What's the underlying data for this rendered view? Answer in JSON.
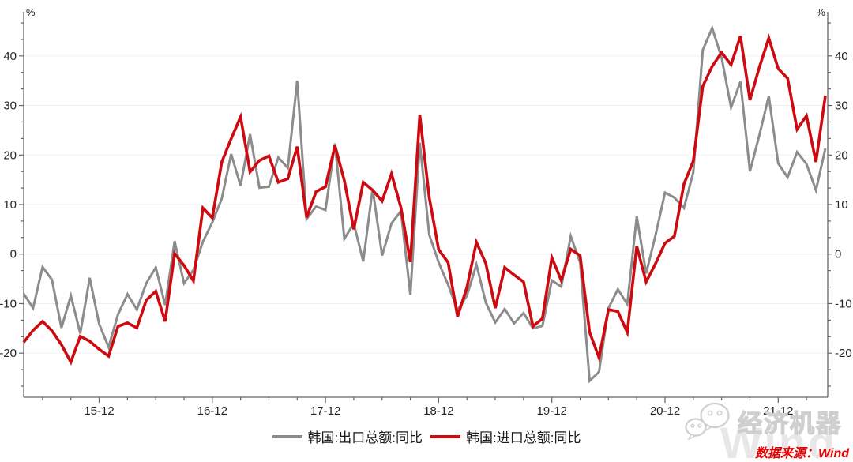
{
  "chart_data": {
    "type": "line",
    "title": "",
    "x": [
      "15-04",
      "15-05",
      "15-06",
      "15-07",
      "15-08",
      "15-09",
      "15-10",
      "15-11",
      "15-12",
      "16-01",
      "16-02",
      "16-03",
      "16-04",
      "16-05",
      "16-06",
      "16-07",
      "16-08",
      "16-09",
      "16-10",
      "16-11",
      "16-12",
      "17-01",
      "17-02",
      "17-03",
      "17-04",
      "17-05",
      "17-06",
      "17-07",
      "17-08",
      "17-09",
      "17-10",
      "17-11",
      "17-12",
      "18-01",
      "18-02",
      "18-03",
      "18-04",
      "18-05",
      "18-06",
      "18-07",
      "18-08",
      "18-09",
      "18-10",
      "18-11",
      "18-12",
      "19-01",
      "19-02",
      "19-03",
      "19-04",
      "19-05",
      "19-06",
      "19-07",
      "19-08",
      "19-09",
      "19-10",
      "19-11",
      "19-12",
      "20-01",
      "20-02",
      "20-03",
      "20-04",
      "20-05",
      "20-06",
      "20-07",
      "20-08",
      "20-09",
      "20-10",
      "20-11",
      "20-12",
      "21-01",
      "21-02",
      "21-03",
      "21-04",
      "21-05",
      "21-06",
      "21-07",
      "21-08",
      "21-09",
      "21-10",
      "21-11",
      "21-12",
      "22-01",
      "22-02",
      "22-03",
      "22-04",
      "22-05"
    ],
    "x_tick_labels": [
      "15-12",
      "16-12",
      "17-12",
      "18-12",
      "19-12",
      "20-12",
      "21-12"
    ],
    "series": [
      {
        "name": "韩国:出口总额:同比",
        "color": "#8C8C8C",
        "values": [
          -8.0,
          -10.9,
          -2.6,
          -5.2,
          -14.9,
          -8.4,
          -16.0,
          -4.8,
          -14.1,
          -18.8,
          -12.2,
          -8.1,
          -11.2,
          -5.9,
          -2.7,
          -10.3,
          2.6,
          -5.9,
          -3.2,
          2.5,
          6.4,
          11.2,
          20.2,
          13.8,
          24.2,
          13.4,
          13.6,
          19.5,
          17.4,
          35.0,
          7.1,
          9.6,
          8.9,
          22.3,
          3.1,
          6.2,
          -1.5,
          13.2,
          -0.3,
          6.2,
          8.7,
          -8.2,
          22.5,
          3.9,
          -1.7,
          -6.2,
          -11.3,
          -8.4,
          -2.1,
          -9.8,
          -13.8,
          -11.1,
          -14.0,
          -11.9,
          -15.0,
          -14.5,
          -5.3,
          -6.6,
          3.6,
          -1.7,
          -25.6,
          -23.8,
          -10.9,
          -7.1,
          -10.1,
          7.6,
          -3.9,
          3.9,
          12.4,
          11.4,
          9.3,
          16.5,
          41.2,
          45.6,
          39.7,
          29.6,
          34.8,
          16.7,
          24.0,
          31.9,
          18.3,
          15.5,
          20.6,
          18.2,
          12.9,
          21.3
        ]
      },
      {
        "name": "韩国:进口总额:同比",
        "color": "#CC0A10",
        "values": [
          -17.8,
          -15.4,
          -13.6,
          -15.5,
          -18.3,
          -21.8,
          -16.6,
          -17.6,
          -19.2,
          -20.6,
          -14.6,
          -13.9,
          -14.9,
          -9.3,
          -7.5,
          -13.6,
          0.1,
          -2.3,
          -5.4,
          9.3,
          7.3,
          18.6,
          23.3,
          27.7,
          16.6,
          18.9,
          19.8,
          14.5,
          15.2,
          21.7,
          7.4,
          12.6,
          13.6,
          21.9,
          14.8,
          5.0,
          14.5,
          12.9,
          10.7,
          16.2,
          9.4,
          -1.6,
          28.1,
          11.4,
          0.9,
          -1.7,
          -12.6,
          -6.7,
          2.4,
          -1.9,
          -10.9,
          -2.7,
          -4.2,
          -5.6,
          -14.6,
          -13.0,
          -0.7,
          -5.3,
          1.0,
          -0.3,
          -15.8,
          -20.9,
          -11.2,
          -11.6,
          -15.8,
          1.6,
          -5.6,
          -1.9,
          2.2,
          3.6,
          14.1,
          18.8,
          33.9,
          37.9,
          40.7,
          38.2,
          44.0,
          31.1,
          37.7,
          43.6,
          37.4,
          35.5,
          25.2,
          27.9,
          18.6,
          32.0
        ]
      }
    ],
    "y_axis": {
      "unit": "%",
      "ticks": [
        40,
        30,
        20,
        10,
        0,
        -10,
        -20
      ],
      "sides": "both",
      "ylim": [
        -28.9,
        48.9
      ]
    },
    "grid": "horizontal-major",
    "legend_position": "bottom-center"
  },
  "footer": {
    "source_text": "数据来源：Wind",
    "logo_text": "经济机器",
    "watermark": "Wind"
  },
  "colors": {
    "export_line": "#8C8C8C",
    "import_line": "#CC0A10",
    "axis": "#666666",
    "grid": "#f0f0f0",
    "tick_label": "#262626",
    "source_text": "#e60000",
    "logo_outline": "#cfcfcf",
    "watermark": "#e7e7e7"
  }
}
